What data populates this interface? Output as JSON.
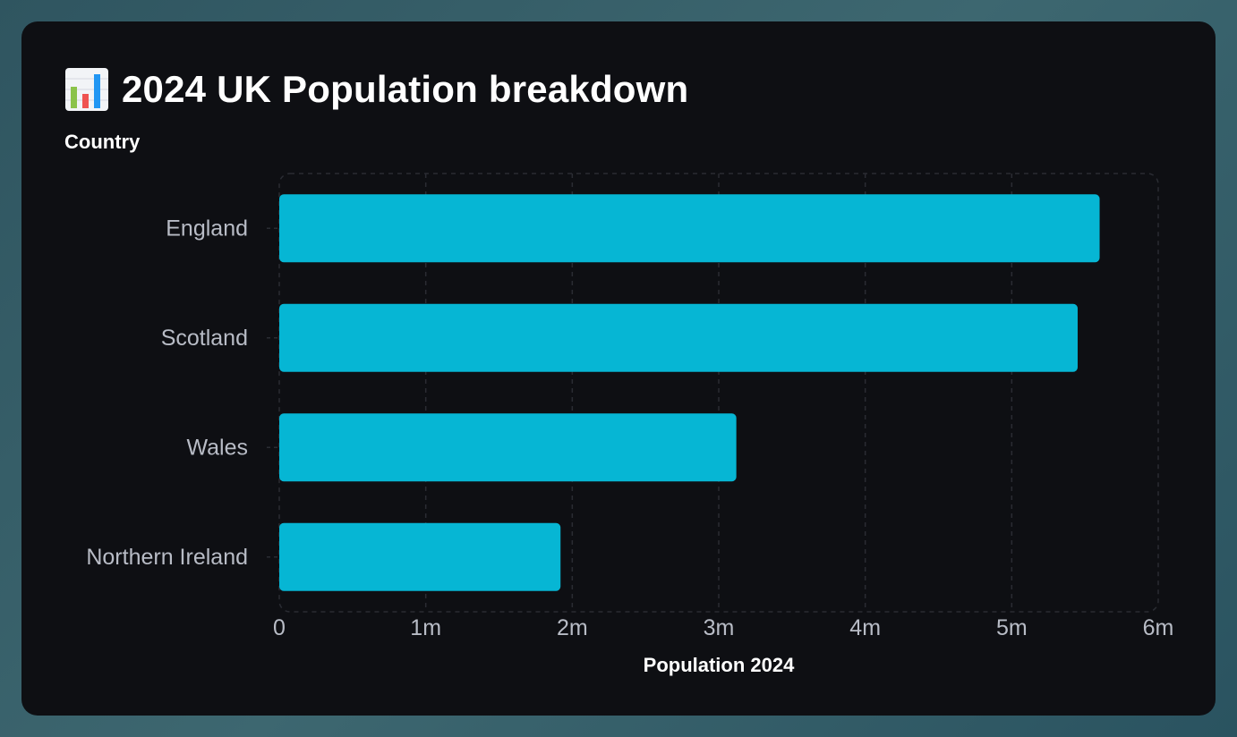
{
  "header": {
    "title": "2024 UK Population breakdown",
    "icon": "bar-chart-icon"
  },
  "colors": {
    "bar": "#06b6d4",
    "card_background": "#0e0f13",
    "grid": "#2a2c33",
    "tick_text": "#b8bcc6",
    "label_text": "#ffffff"
  },
  "chart_data": {
    "type": "bar",
    "orientation": "horizontal",
    "title": "2024 UK Population breakdown",
    "ylabel": "Country",
    "xlabel": "Population 2024",
    "categories": [
      "England",
      "Scotland",
      "Wales",
      "Northern Ireland"
    ],
    "values": [
      5600000,
      5450000,
      3120000,
      1920000
    ],
    "xlim": [
      0,
      6000000
    ],
    "xticks": [
      0,
      1000000,
      2000000,
      3000000,
      4000000,
      5000000,
      6000000
    ],
    "xtick_labels": [
      "0",
      "1m",
      "2m",
      "3m",
      "4m",
      "5m",
      "6m"
    ],
    "grid": true,
    "grid_style": "dashed",
    "legend": "none"
  }
}
